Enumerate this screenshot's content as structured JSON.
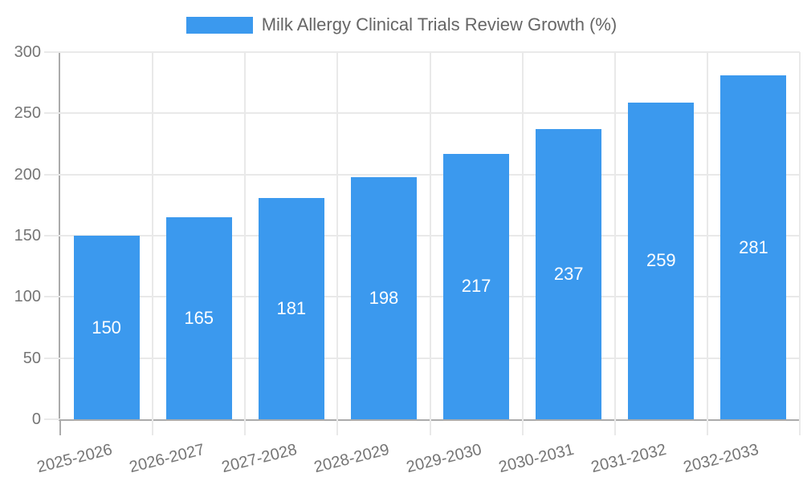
{
  "chart_data": {
    "type": "bar",
    "title": "Milk Allergy Clinical Trials Review Growth (%)",
    "categories": [
      "2025-2026",
      "2026-2027",
      "2027-2028",
      "2028-2029",
      "2029-2030",
      "2030-2031",
      "2031-2032",
      "2032-2033"
    ],
    "values": [
      150,
      165,
      181,
      198,
      217,
      237,
      259,
      281
    ],
    "xlabel": "",
    "ylabel": "",
    "ylim": [
      0,
      300
    ],
    "ytick_step": 50,
    "yticks": [
      0,
      50,
      100,
      150,
      200,
      250,
      300
    ],
    "grid": true,
    "legend_position": "top",
    "colors": {
      "bar": "#3b99ee",
      "value_label": "#ffffff",
      "axis_line": "#ababab",
      "gridline": "#e9e9e9",
      "tick_label": "#757575",
      "title": "#666666"
    }
  }
}
